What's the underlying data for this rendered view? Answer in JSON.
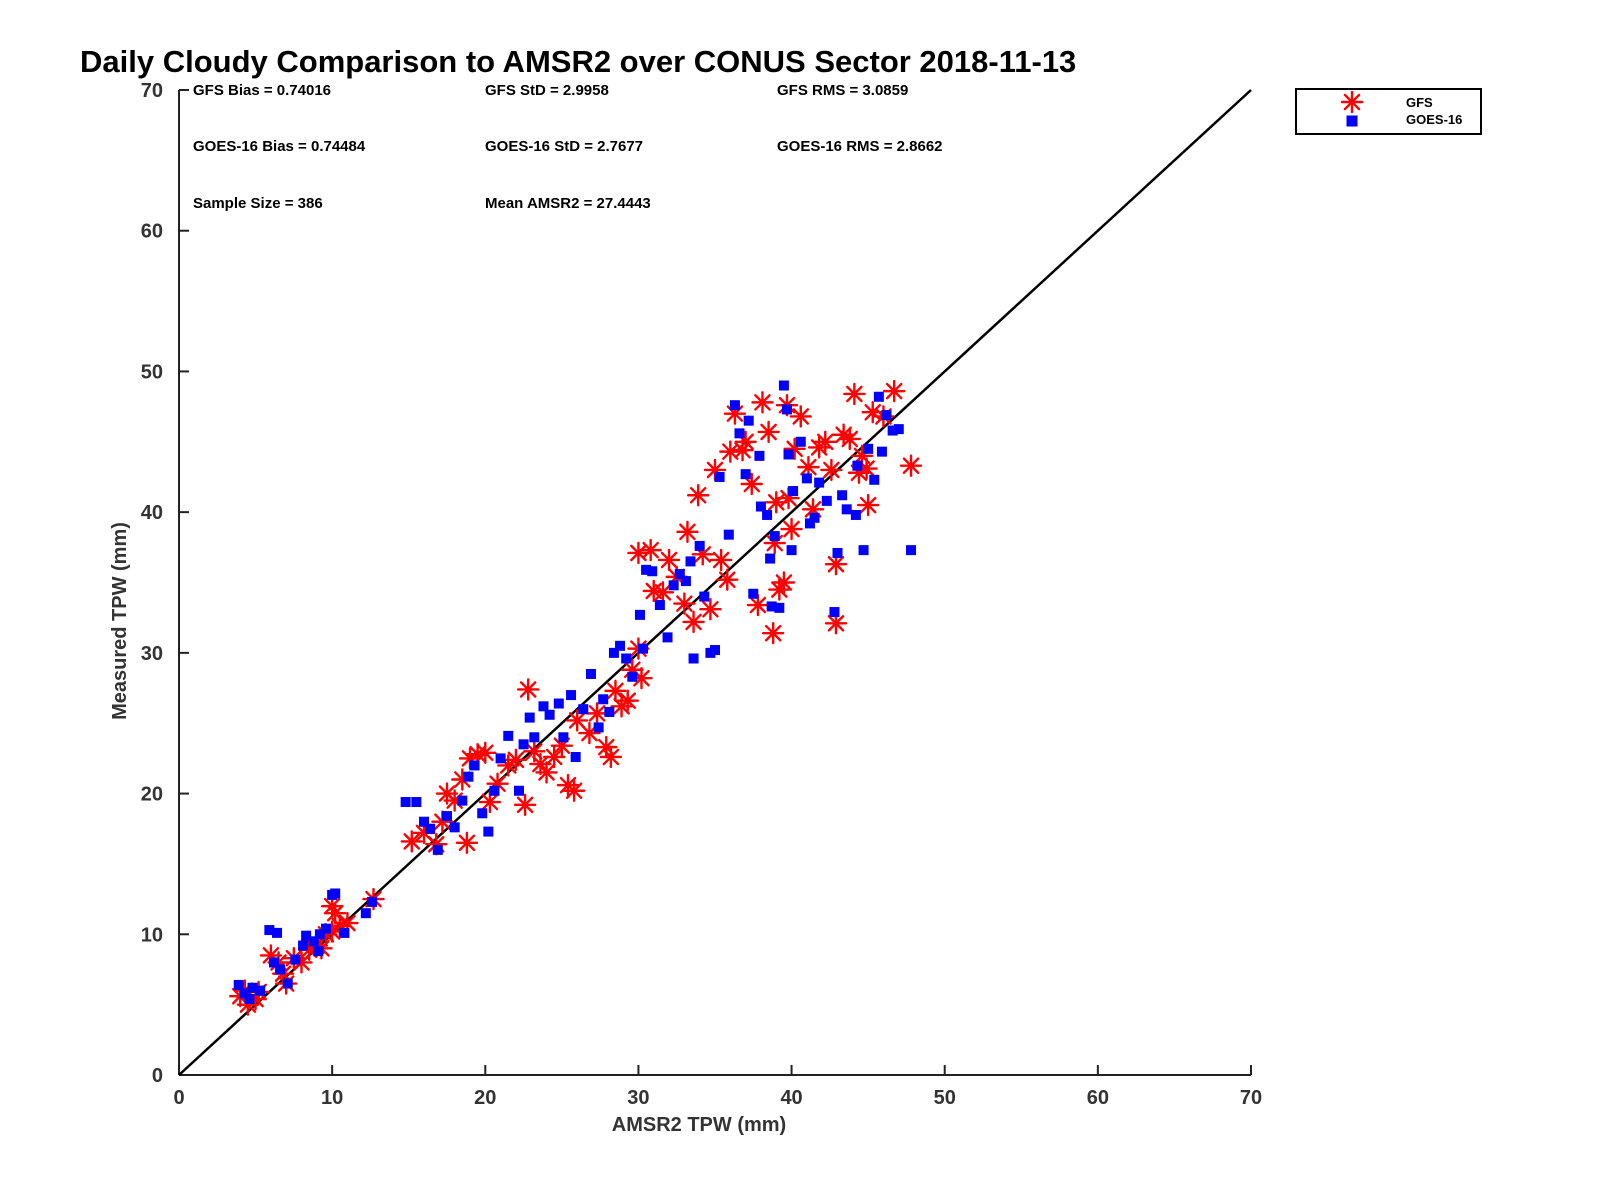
{
  "chart_data": {
    "type": "scatter",
    "title": "Daily Cloudy Comparison to AMSR2 over CONUS Sector 2018-11-13",
    "xlabel": "AMSR2 TPW (mm)",
    "ylabel": "Measured TPW (mm)",
    "xlim": [
      0,
      70
    ],
    "ylim": [
      0,
      70
    ],
    "xticks": [
      0,
      10,
      20,
      30,
      40,
      50,
      60,
      70
    ],
    "yticks": [
      0,
      10,
      20,
      30,
      40,
      50,
      60,
      70
    ],
    "grid": false,
    "legend_position": "outside top-right",
    "reference_line": {
      "name": "one-to-one",
      "from": [
        0,
        0
      ],
      "to": [
        70,
        70
      ],
      "color": "#000000"
    },
    "stats": [
      {
        "label": "GFS Bias = 0.74016"
      },
      {
        "label": "GFS StD = 2.9958"
      },
      {
        "label": "GFS RMS = 3.0859"
      },
      {
        "label": "GOES-16 Bias = 0.74484"
      },
      {
        "label": "GOES-16 StD = 2.7677"
      },
      {
        "label": "GOES-16 RMS = 2.8662"
      },
      {
        "label": "Sample Size = 386"
      },
      {
        "label": "Mean AMSR2 = 27.4443"
      }
    ],
    "series": [
      {
        "name": "GFS",
        "marker": "asterisk",
        "color": "#ff0000",
        "points": [
          [
            4.0,
            5.6
          ],
          [
            4.5,
            5.0
          ],
          [
            5.0,
            5.4
          ],
          [
            5.2,
            5.9
          ],
          [
            4.3,
            6.0
          ],
          [
            6.0,
            8.5
          ],
          [
            6.5,
            8.0
          ],
          [
            6.8,
            7.2
          ],
          [
            7.0,
            6.5
          ],
          [
            7.5,
            8.3
          ],
          [
            8.0,
            8.0
          ],
          [
            8.5,
            8.9
          ],
          [
            9.0,
            9.2
          ],
          [
            9.3,
            9.0
          ],
          [
            9.6,
            10.0
          ],
          [
            10.0,
            10.2
          ],
          [
            10.2,
            11.5
          ],
          [
            10.5,
            10.6
          ],
          [
            11.0,
            10.8
          ],
          [
            10.0,
            12.0
          ],
          [
            12.7,
            12.5
          ],
          [
            15.2,
            16.6
          ],
          [
            16.0,
            17.2
          ],
          [
            16.8,
            16.4
          ],
          [
            17.2,
            18.0
          ],
          [
            17.5,
            20.0
          ],
          [
            18.0,
            19.5
          ],
          [
            18.5,
            21.0
          ],
          [
            18.8,
            16.5
          ],
          [
            19.0,
            22.5
          ],
          [
            19.5,
            22.8
          ],
          [
            20.0,
            22.9
          ],
          [
            20.3,
            19.4
          ],
          [
            20.8,
            20.7
          ],
          [
            21.5,
            22.0
          ],
          [
            22.0,
            22.4
          ],
          [
            22.6,
            19.2
          ],
          [
            22.8,
            27.4
          ],
          [
            23.2,
            23.0
          ],
          [
            23.6,
            22.1
          ],
          [
            24.0,
            21.5
          ],
          [
            24.5,
            22.6
          ],
          [
            25.0,
            23.4
          ],
          [
            25.4,
            20.6
          ],
          [
            25.8,
            20.2
          ],
          [
            26.0,
            25.2
          ],
          [
            26.8,
            24.3
          ],
          [
            27.3,
            25.7
          ],
          [
            27.9,
            23.3
          ],
          [
            28.2,
            22.6
          ],
          [
            28.5,
            27.3
          ],
          [
            28.9,
            26.2
          ],
          [
            29.3,
            26.6
          ],
          [
            29.6,
            28.8
          ],
          [
            30.0,
            30.3
          ],
          [
            30.2,
            28.2
          ],
          [
            30.0,
            37.1
          ],
          [
            30.8,
            37.3
          ],
          [
            31.0,
            34.4
          ],
          [
            31.6,
            34.3
          ],
          [
            32.0,
            36.6
          ],
          [
            32.5,
            35.4
          ],
          [
            33.0,
            33.5
          ],
          [
            33.2,
            38.6
          ],
          [
            33.6,
            32.2
          ],
          [
            33.9,
            41.2
          ],
          [
            34.2,
            37.0
          ],
          [
            34.7,
            33.1
          ],
          [
            35.0,
            43.0
          ],
          [
            35.4,
            36.6
          ],
          [
            35.8,
            35.2
          ],
          [
            36.0,
            44.3
          ],
          [
            36.3,
            47.0
          ],
          [
            36.8,
            44.4
          ],
          [
            37.4,
            42.0
          ],
          [
            37.8,
            33.4
          ],
          [
            38.1,
            47.8
          ],
          [
            38.5,
            45.7
          ],
          [
            38.8,
            31.4
          ],
          [
            38.9,
            37.8
          ],
          [
            39.0,
            40.7
          ],
          [
            39.2,
            34.5
          ],
          [
            39.5,
            35.0
          ],
          [
            39.7,
            47.6
          ],
          [
            40.0,
            38.8
          ],
          [
            40.2,
            44.5
          ],
          [
            40.6,
            46.8
          ],
          [
            41.1,
            43.2
          ],
          [
            41.4,
            40.2
          ],
          [
            41.8,
            44.6
          ],
          [
            42.2,
            45.0
          ],
          [
            42.6,
            43.0
          ],
          [
            42.9,
            36.3
          ],
          [
            42.9,
            32.1
          ],
          [
            43.4,
            45.5
          ],
          [
            43.8,
            45.2
          ],
          [
            44.1,
            48.4
          ],
          [
            44.4,
            42.8
          ],
          [
            44.9,
            43.1
          ],
          [
            45.0,
            40.5
          ],
          [
            45.3,
            47.1
          ],
          [
            46.0,
            46.8
          ],
          [
            46.7,
            48.6
          ],
          [
            47.8,
            43.3
          ],
          [
            44.6,
            44.0
          ],
          [
            37.0,
            45.0
          ],
          [
            39.8,
            41.0
          ]
        ]
      },
      {
        "name": "GOES-16",
        "marker": "square",
        "color": "#0000ff",
        "points": [
          [
            3.9,
            6.4
          ],
          [
            4.3,
            5.8
          ],
          [
            4.8,
            6.2
          ],
          [
            5.3,
            6.0
          ],
          [
            4.6,
            5.4
          ],
          [
            5.9,
            10.3
          ],
          [
            6.4,
            10.1
          ],
          [
            6.2,
            8.0
          ],
          [
            6.6,
            7.5
          ],
          [
            7.1,
            6.5
          ],
          [
            7.6,
            8.2
          ],
          [
            8.1,
            9.2
          ],
          [
            8.3,
            9.9
          ],
          [
            8.8,
            9.5
          ],
          [
            9.2,
            10.0
          ],
          [
            9.6,
            10.4
          ],
          [
            10.0,
            12.8
          ],
          [
            10.2,
            12.9
          ],
          [
            10.8,
            10.1
          ],
          [
            9.1,
            8.8
          ],
          [
            12.2,
            11.5
          ],
          [
            12.6,
            12.3
          ],
          [
            14.8,
            19.4
          ],
          [
            15.5,
            19.4
          ],
          [
            16.0,
            18.0
          ],
          [
            16.4,
            17.5
          ],
          [
            16.9,
            16.0
          ],
          [
            17.5,
            18.4
          ],
          [
            18.0,
            17.6
          ],
          [
            18.5,
            19.5
          ],
          [
            18.9,
            21.2
          ],
          [
            19.3,
            22.0
          ],
          [
            19.8,
            18.6
          ],
          [
            20.2,
            17.3
          ],
          [
            20.6,
            20.2
          ],
          [
            21.0,
            22.5
          ],
          [
            21.5,
            24.1
          ],
          [
            22.2,
            20.2
          ],
          [
            22.5,
            23.5
          ],
          [
            22.9,
            25.4
          ],
          [
            23.2,
            24.0
          ],
          [
            23.8,
            26.2
          ],
          [
            24.2,
            25.6
          ],
          [
            24.8,
            26.4
          ],
          [
            25.1,
            24.0
          ],
          [
            25.6,
            27.0
          ],
          [
            25.9,
            22.6
          ],
          [
            26.4,
            26.0
          ],
          [
            26.9,
            28.5
          ],
          [
            27.4,
            24.7
          ],
          [
            27.7,
            26.7
          ],
          [
            28.1,
            25.8
          ],
          [
            28.4,
            30.0
          ],
          [
            28.8,
            30.5
          ],
          [
            29.2,
            29.6
          ],
          [
            29.6,
            28.3
          ],
          [
            30.1,
            32.7
          ],
          [
            30.3,
            30.3
          ],
          [
            30.5,
            35.9
          ],
          [
            30.9,
            35.8
          ],
          [
            31.4,
            33.4
          ],
          [
            31.9,
            31.1
          ],
          [
            32.3,
            34.8
          ],
          [
            32.7,
            35.6
          ],
          [
            33.1,
            35.1
          ],
          [
            33.4,
            36.5
          ],
          [
            33.6,
            29.6
          ],
          [
            34.0,
            37.6
          ],
          [
            34.3,
            34.0
          ],
          [
            34.7,
            30.0
          ],
          [
            35.0,
            30.2
          ],
          [
            35.3,
            42.5
          ],
          [
            35.9,
            38.4
          ],
          [
            36.3,
            47.6
          ],
          [
            36.6,
            45.6
          ],
          [
            37.0,
            42.7
          ],
          [
            37.2,
            46.5
          ],
          [
            37.5,
            34.2
          ],
          [
            37.9,
            44.0
          ],
          [
            38.0,
            40.4
          ],
          [
            38.4,
            39.8
          ],
          [
            38.7,
            33.3
          ],
          [
            38.9,
            38.3
          ],
          [
            39.2,
            33.2
          ],
          [
            39.5,
            49.0
          ],
          [
            39.8,
            44.1
          ],
          [
            40.0,
            37.3
          ],
          [
            40.1,
            41.5
          ],
          [
            40.6,
            45.0
          ],
          [
            41.0,
            42.4
          ],
          [
            41.2,
            39.2
          ],
          [
            41.5,
            39.6
          ],
          [
            41.8,
            42.1
          ],
          [
            42.3,
            40.8
          ],
          [
            42.8,
            32.9
          ],
          [
            43.0,
            37.1
          ],
          [
            43.3,
            41.2
          ],
          [
            43.6,
            40.2
          ],
          [
            44.2,
            39.8
          ],
          [
            44.7,
            37.3
          ],
          [
            45.0,
            44.5
          ],
          [
            45.4,
            42.3
          ],
          [
            45.7,
            48.2
          ],
          [
            46.2,
            46.9
          ],
          [
            46.6,
            45.8
          ],
          [
            47.0,
            45.9
          ],
          [
            47.8,
            37.3
          ],
          [
            45.9,
            44.3
          ],
          [
            44.3,
            43.3
          ],
          [
            39.7,
            47.3
          ],
          [
            38.6,
            36.7
          ]
        ]
      }
    ]
  }
}
